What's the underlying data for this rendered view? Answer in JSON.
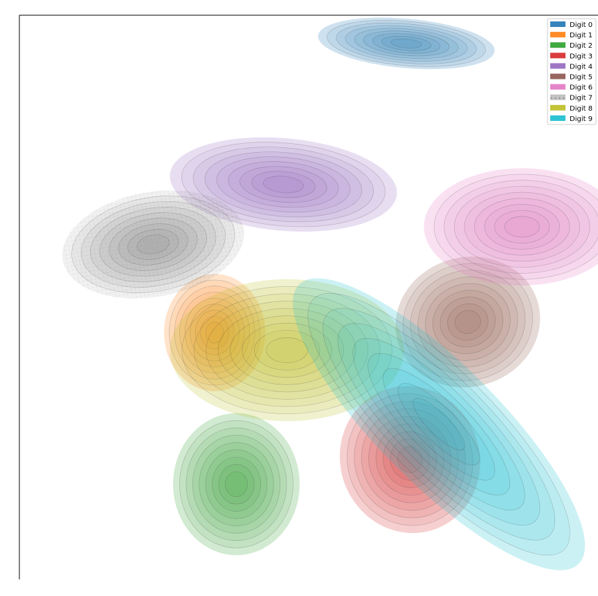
{
  "chart_data": {
    "type": "kde-contour",
    "title": "",
    "xlabel": "",
    "ylabel": "",
    "grid": false,
    "legend_position": "top-right",
    "series": [
      {
        "name": "Digit 0",
        "color": "#1f77b4",
        "center": [
          2.7,
          9.2
        ],
        "spread": [
          1.4,
          0.4
        ],
        "angle": -5
      },
      {
        "name": "Digit 1",
        "color": "#ff7f0e",
        "center": [
          -2.6,
          1.0
        ],
        "spread": [
          0.8,
          0.95
        ],
        "angle": 0
      },
      {
        "name": "Digit 2",
        "color": "#2ca02c",
        "center": [
          -2.0,
          -3.3
        ],
        "spread": [
          1.0,
          1.15
        ],
        "angle": 0
      },
      {
        "name": "Digit 3",
        "color": "#d62728",
        "center": [
          2.8,
          -2.6
        ],
        "spread": [
          1.1,
          1.2
        ],
        "angle": 20
      },
      {
        "name": "Digit 4",
        "color": "#9467bd",
        "center": [
          -0.7,
          5.2
        ],
        "spread": [
          1.8,
          0.75
        ],
        "angle": -5
      },
      {
        "name": "Digit 5",
        "color": "#8c564b",
        "center": [
          4.4,
          1.3
        ],
        "spread": [
          1.15,
          1.05
        ],
        "angle": 15
      },
      {
        "name": "Digit 6",
        "color": "#e377c2",
        "center": [
          5.9,
          4.0
        ],
        "spread": [
          1.55,
          0.95
        ],
        "angle": 0
      },
      {
        "name": "Digit 7",
        "color": "#7f7f7f",
        "center": [
          -4.3,
          3.5
        ],
        "spread": [
          1.45,
          0.85
        ],
        "angle": 10
      },
      {
        "name": "Digit 8",
        "color": "#bcbd22",
        "center": [
          -0.6,
          0.5
        ],
        "spread": [
          1.85,
          1.15
        ],
        "angle": 0
      },
      {
        "name": "Digit 9",
        "color": "#17becf",
        "center": [
          3.6,
          -1.6
        ],
        "spread": [
          0.95,
          3.2
        ],
        "angle": 45
      }
    ],
    "xlim": [
      -8,
      8
    ],
    "ylim": [
      -6,
      10
    ]
  },
  "legend": {
    "entries": [
      "Digit 0",
      "Digit 1",
      "Digit 2",
      "Digit 3",
      "Digit 4",
      "Digit 5",
      "Digit 6",
      "Digit 7",
      "Digit 8",
      "Digit 9"
    ]
  }
}
